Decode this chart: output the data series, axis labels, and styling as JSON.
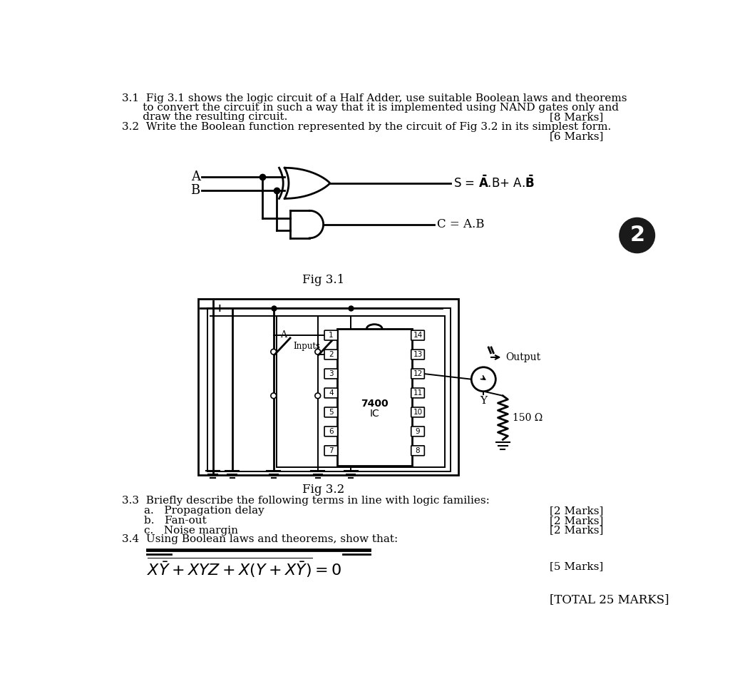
{
  "bg_color": "#ffffff",
  "fig_width": 10.24,
  "fig_height": 9.66,
  "fontsize_main": 11.0,
  "q31_line1": "3.1  Fig 3.1 shows the logic circuit of a Half Adder, use suitable Boolean laws and theorems",
  "q31_line2": "      to convert the circuit in such a way that it is implemented using NAND gates only and",
  "q31_line3": "      draw the resulting circuit.",
  "q31_marks": "[8 Marks]",
  "q32_line1": "3.2  Write the Boolean function represented by the circuit of Fig 3.2 in its simplest form.",
  "q32_marks": "[6 Marks]",
  "fig31_label": "Fig 3.1",
  "fig32_label": "Fig 3.2",
  "q33_line1": "3.3  Briefly describe the following terms in line with logic families:",
  "q33a": "a.   Propagation delay",
  "q33b": "b.   Fan-out",
  "q33c": "c.   Noise margin",
  "q33a_marks": "[2 Marks]",
  "q33b_marks": "[2 Marks]",
  "q33c_marks": "[2 Marks]",
  "q34_line1": "3.4  Using Boolean laws and theorems, show that:",
  "q34_marks": "[5 Marks]",
  "total_marks": "[TOTAL 25 MARKS]",
  "badge_num": "2"
}
